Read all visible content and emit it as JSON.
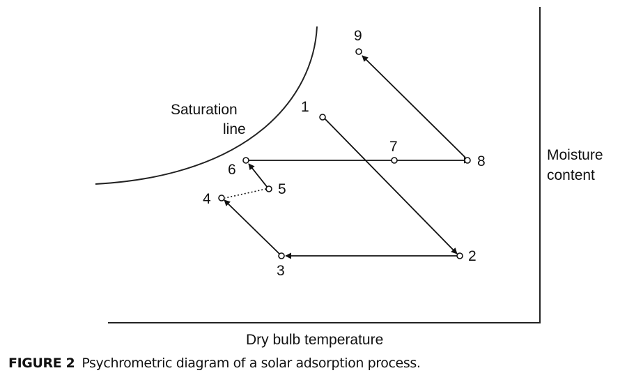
{
  "labels": {
    "saturation_line_1": "Saturation",
    "saturation_line_2": "line",
    "y_axis_1": "Moisture",
    "y_axis_2": "content",
    "x_axis": "Dry bulb temperature"
  },
  "points": [
    {
      "id": "p1",
      "text": "1"
    },
    {
      "id": "p2",
      "text": "2"
    },
    {
      "id": "p3",
      "text": "3"
    },
    {
      "id": "p4",
      "text": "4"
    },
    {
      "id": "p5",
      "text": "5"
    },
    {
      "id": "p6",
      "text": "6"
    },
    {
      "id": "p7",
      "text": "7"
    },
    {
      "id": "p8",
      "text": "8"
    },
    {
      "id": "p9",
      "text": "9"
    }
  ],
  "processes": [
    {
      "from": "1",
      "to": "2",
      "style": "solid"
    },
    {
      "from": "2",
      "to": "3",
      "style": "solid"
    },
    {
      "from": "3",
      "to": "4",
      "style": "solid"
    },
    {
      "from": "5",
      "to": "4",
      "style": "dotted"
    },
    {
      "from": "5",
      "to": "6",
      "style": "solid"
    },
    {
      "from": "6",
      "to": "8",
      "style": "solid",
      "via": "7"
    },
    {
      "from": "8",
      "to": "9",
      "style": "solid"
    }
  ],
  "caption": {
    "figure_number": "FIGURE 2",
    "text": "Psychrometric  diagram of a solar adsorption process."
  }
}
